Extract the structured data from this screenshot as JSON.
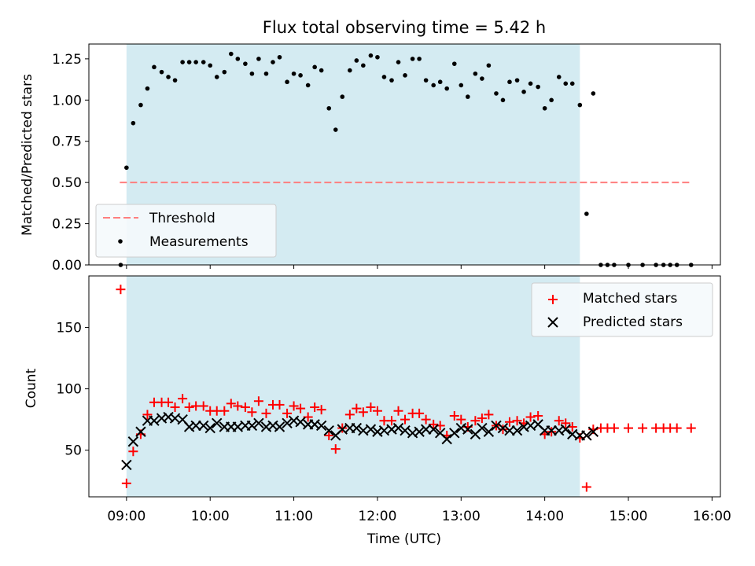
{
  "chart_data": [
    {
      "type": "scatter",
      "title": "Flux total observing time = 5.42 h",
      "ylabel": "Matched/Predicted stars",
      "xlabel": "",
      "xlim": [
        8.55,
        16.1
      ],
      "ylim": [
        0.0,
        1.34
      ],
      "yticks": [
        0.0,
        0.25,
        0.5,
        0.75,
        1.0,
        1.25
      ],
      "ytick_labels": [
        "0.00",
        "0.25",
        "0.50",
        "0.75",
        "1.00",
        "1.25"
      ],
      "shaded_interval": [
        9.0,
        14.42
      ],
      "shaded_color": "#add8e6",
      "threshold": {
        "name": "Threshold",
        "y": 0.5,
        "x_range": [
          8.92,
          15.75
        ],
        "color": "#ff7f7f"
      },
      "legend": {
        "position": "lower-left",
        "entries": [
          "Threshold",
          "Measurements"
        ]
      },
      "series": [
        {
          "name": "Measurements",
          "color": "#000000",
          "points": [
            [
              8.93,
              0.0
            ],
            [
              9.0,
              0.59
            ],
            [
              9.08,
              0.86
            ],
            [
              9.17,
              0.97
            ],
            [
              9.25,
              1.07
            ],
            [
              9.33,
              1.2
            ],
            [
              9.42,
              1.17
            ],
            [
              9.5,
              1.14
            ],
            [
              9.58,
              1.12
            ],
            [
              9.67,
              1.23
            ],
            [
              9.75,
              1.23
            ],
            [
              9.83,
              1.23
            ],
            [
              9.92,
              1.23
            ],
            [
              10.0,
              1.21
            ],
            [
              10.08,
              1.14
            ],
            [
              10.17,
              1.17
            ],
            [
              10.25,
              1.28
            ],
            [
              10.33,
              1.25
            ],
            [
              10.42,
              1.22
            ],
            [
              10.5,
              1.16
            ],
            [
              10.58,
              1.25
            ],
            [
              10.67,
              1.16
            ],
            [
              10.75,
              1.23
            ],
            [
              10.83,
              1.26
            ],
            [
              10.92,
              1.11
            ],
            [
              11.0,
              1.16
            ],
            [
              11.08,
              1.15
            ],
            [
              11.17,
              1.09
            ],
            [
              11.25,
              1.2
            ],
            [
              11.33,
              1.18
            ],
            [
              11.42,
              0.95
            ],
            [
              11.5,
              0.82
            ],
            [
              11.58,
              1.02
            ],
            [
              11.67,
              1.18
            ],
            [
              11.75,
              1.24
            ],
            [
              11.83,
              1.21
            ],
            [
              11.92,
              1.27
            ],
            [
              12.0,
              1.26
            ],
            [
              12.08,
              1.14
            ],
            [
              12.17,
              1.12
            ],
            [
              12.25,
              1.23
            ],
            [
              12.33,
              1.15
            ],
            [
              12.42,
              1.25
            ],
            [
              12.5,
              1.25
            ],
            [
              12.58,
              1.12
            ],
            [
              12.67,
              1.09
            ],
            [
              12.75,
              1.11
            ],
            [
              12.83,
              1.07
            ],
            [
              12.92,
              1.22
            ],
            [
              13.0,
              1.09
            ],
            [
              13.08,
              1.02
            ],
            [
              13.17,
              1.16
            ],
            [
              13.25,
              1.13
            ],
            [
              13.33,
              1.21
            ],
            [
              13.42,
              1.04
            ],
            [
              13.5,
              1.0
            ],
            [
              13.58,
              1.11
            ],
            [
              13.67,
              1.12
            ],
            [
              13.75,
              1.05
            ],
            [
              13.83,
              1.1
            ],
            [
              13.92,
              1.08
            ],
            [
              14.0,
              0.95
            ],
            [
              14.08,
              1.0
            ],
            [
              14.17,
              1.14
            ],
            [
              14.25,
              1.1
            ],
            [
              14.33,
              1.1
            ],
            [
              14.42,
              0.97
            ],
            [
              14.5,
              0.31
            ],
            [
              14.58,
              1.04
            ],
            [
              14.67,
              0.0
            ],
            [
              14.75,
              0.0
            ],
            [
              14.83,
              0.0
            ],
            [
              15.0,
              0.0
            ],
            [
              15.17,
              0.0
            ],
            [
              15.33,
              0.0
            ],
            [
              15.42,
              0.0
            ],
            [
              15.5,
              0.0
            ],
            [
              15.58,
              0.0
            ],
            [
              15.75,
              0.0
            ]
          ]
        }
      ]
    },
    {
      "type": "scatter",
      "title": "",
      "ylabel": "Count",
      "xlabel": "Time (UTC)",
      "xlim": [
        8.55,
        16.1
      ],
      "ylim": [
        12,
        192
      ],
      "yticks": [
        50,
        100,
        150
      ],
      "ytick_labels": [
        "50",
        "100",
        "150"
      ],
      "xticks": [
        9,
        10,
        11,
        12,
        13,
        14,
        15,
        16
      ],
      "xtick_labels": [
        "09:00",
        "10:00",
        "11:00",
        "12:00",
        "13:00",
        "14:00",
        "15:00",
        "16:00"
      ],
      "shaded_interval": [
        9.0,
        14.42
      ],
      "shaded_color": "#add8e6",
      "legend": {
        "position": "top-right",
        "entries": [
          "Matched stars",
          "Predicted stars"
        ]
      },
      "series": [
        {
          "name": "Matched stars",
          "marker": "plus",
          "color": "#ff0000",
          "points": [
            [
              8.93,
              181
            ],
            [
              9.0,
              23
            ],
            [
              9.08,
              49
            ],
            [
              9.17,
              63
            ],
            [
              9.25,
              79
            ],
            [
              9.33,
              89
            ],
            [
              9.42,
              89
            ],
            [
              9.5,
              89
            ],
            [
              9.58,
              85
            ],
            [
              9.67,
              92
            ],
            [
              9.75,
              85
            ],
            [
              9.83,
              86
            ],
            [
              9.92,
              86
            ],
            [
              10.0,
              82
            ],
            [
              10.08,
              82
            ],
            [
              10.17,
              82
            ],
            [
              10.25,
              88
            ],
            [
              10.33,
              86
            ],
            [
              10.42,
              85
            ],
            [
              10.5,
              81
            ],
            [
              10.58,
              90
            ],
            [
              10.67,
              80
            ],
            [
              10.75,
              87
            ],
            [
              10.83,
              87
            ],
            [
              10.92,
              80
            ],
            [
              11.0,
              86
            ],
            [
              11.08,
              84
            ],
            [
              11.17,
              77
            ],
            [
              11.25,
              85
            ],
            [
              11.33,
              83
            ],
            [
              11.42,
              62
            ],
            [
              11.5,
              51
            ],
            [
              11.58,
              68
            ],
            [
              11.67,
              79
            ],
            [
              11.75,
              84
            ],
            [
              11.83,
              81
            ],
            [
              11.92,
              85
            ],
            [
              12.0,
              82
            ],
            [
              12.08,
              74
            ],
            [
              12.17,
              74
            ],
            [
              12.25,
              82
            ],
            [
              12.33,
              75
            ],
            [
              12.42,
              80
            ],
            [
              12.5,
              80
            ],
            [
              12.58,
              75
            ],
            [
              12.67,
              71
            ],
            [
              12.75,
              70
            ],
            [
              12.83,
              62
            ],
            [
              12.92,
              78
            ],
            [
              13.0,
              75
            ],
            [
              13.08,
              69
            ],
            [
              13.17,
              74
            ],
            [
              13.25,
              76
            ],
            [
              13.33,
              79
            ],
            [
              13.42,
              70
            ],
            [
              13.5,
              67
            ],
            [
              13.58,
              73
            ],
            [
              13.67,
              74
            ],
            [
              13.75,
              72
            ],
            [
              13.83,
              77
            ],
            [
              13.92,
              78
            ],
            [
              14.0,
              63
            ],
            [
              14.08,
              65
            ],
            [
              14.17,
              74
            ],
            [
              14.25,
              72
            ],
            [
              14.33,
              69
            ],
            [
              14.42,
              60
            ],
            [
              14.5,
              20
            ],
            [
              14.58,
              67
            ],
            [
              14.67,
              68
            ],
            [
              14.75,
              68
            ],
            [
              14.83,
              68
            ],
            [
              15.0,
              68
            ],
            [
              15.17,
              68
            ],
            [
              15.33,
              68
            ],
            [
              15.42,
              68
            ],
            [
              15.5,
              68
            ],
            [
              15.58,
              68
            ],
            [
              15.75,
              68
            ]
          ]
        },
        {
          "name": "Predicted stars",
          "marker": "x",
          "color": "#000000",
          "points": [
            [
              9.0,
              38
            ],
            [
              9.08,
              57
            ],
            [
              9.17,
              65
            ],
            [
              9.25,
              74
            ],
            [
              9.33,
              74
            ],
            [
              9.42,
              76
            ],
            [
              9.5,
              77
            ],
            [
              9.58,
              76
            ],
            [
              9.67,
              75
            ],
            [
              9.75,
              69
            ],
            [
              9.83,
              70
            ],
            [
              9.92,
              70
            ],
            [
              10.0,
              68
            ],
            [
              10.08,
              72
            ],
            [
              10.17,
              69
            ],
            [
              10.25,
              69
            ],
            [
              10.33,
              69
            ],
            [
              10.42,
              70
            ],
            [
              10.5,
              70
            ],
            [
              10.58,
              72
            ],
            [
              10.67,
              69
            ],
            [
              10.75,
              70
            ],
            [
              10.83,
              69
            ],
            [
              10.92,
              72
            ],
            [
              11.0,
              74
            ],
            [
              11.08,
              73
            ],
            [
              11.17,
              71
            ],
            [
              11.25,
              71
            ],
            [
              11.33,
              70
            ],
            [
              11.42,
              66
            ],
            [
              11.5,
              62
            ],
            [
              11.58,
              67
            ],
            [
              11.67,
              68
            ],
            [
              11.75,
              68
            ],
            [
              11.83,
              66
            ],
            [
              11.92,
              67
            ],
            [
              12.0,
              65
            ],
            [
              12.08,
              66
            ],
            [
              12.17,
              67
            ],
            [
              12.25,
              68
            ],
            [
              12.33,
              66
            ],
            [
              12.42,
              64
            ],
            [
              12.5,
              65
            ],
            [
              12.58,
              67
            ],
            [
              12.67,
              67
            ],
            [
              12.75,
              64
            ],
            [
              12.83,
              59
            ],
            [
              12.92,
              64
            ],
            [
              13.0,
              68
            ],
            [
              13.08,
              67
            ],
            [
              13.17,
              63
            ],
            [
              13.25,
              68
            ],
            [
              13.33,
              65
            ],
            [
              13.42,
              70
            ],
            [
              13.5,
              68
            ],
            [
              13.58,
              66
            ],
            [
              13.67,
              66
            ],
            [
              13.75,
              69
            ],
            [
              13.83,
              70
            ],
            [
              13.92,
              71
            ],
            [
              14.0,
              66
            ],
            [
              14.08,
              66
            ],
            [
              14.17,
              66
            ],
            [
              14.25,
              67
            ],
            [
              14.33,
              63
            ],
            [
              14.42,
              62
            ],
            [
              14.5,
              62
            ],
            [
              14.58,
              65
            ]
          ]
        }
      ]
    }
  ]
}
